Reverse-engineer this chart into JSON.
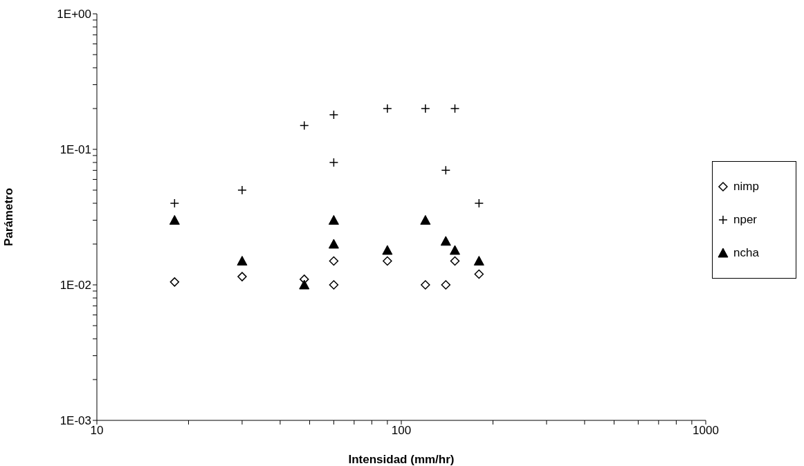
{
  "chart_data": {
    "type": "scatter",
    "xlabel": "Intensidad (mm/hr)",
    "ylabel": "Parámetro",
    "log": "xy",
    "grid": false,
    "legend": "right",
    "xlim": [
      10,
      1000
    ],
    "xticks": [
      10,
      {
        "value": 20,
        "label": null
      },
      {
        "value": 30,
        "label": null
      },
      {
        "value": 40,
        "label": null
      },
      {
        "value": 50,
        "label": null
      },
      {
        "value": 60,
        "label": null
      },
      {
        "value": 70,
        "label": null
      },
      {
        "value": 80,
        "label": null
      },
      {
        "value": 90,
        "label": null
      },
      100,
      {
        "value": 200,
        "label": null
      },
      {
        "value": 300,
        "label": null
      },
      {
        "value": 400,
        "label": null
      },
      {
        "value": 500,
        "label": null
      },
      {
        "value": 600,
        "label": null
      },
      {
        "value": 700,
        "label": null
      },
      {
        "value": 800,
        "label": null
      },
      {
        "value": 900,
        "label": null
      },
      1000
    ],
    "ylim": [
      0.001,
      1
    ],
    "yticks": [
      {
        "value": 0.001,
        "label": "1E-03"
      },
      {
        "value": 0.002,
        "label": null
      },
      {
        "value": 0.003,
        "label": null
      },
      {
        "value": 0.004,
        "label": null
      },
      {
        "value": 0.005,
        "label": null
      },
      {
        "value": 0.006,
        "label": null
      },
      {
        "value": 0.007,
        "label": null
      },
      {
        "value": 0.008,
        "label": null
      },
      {
        "value": 0.009,
        "label": null
      },
      {
        "value": 0.01,
        "label": "1E-02"
      },
      {
        "value": 0.02,
        "label": null
      },
      {
        "value": 0.03,
        "label": null
      },
      {
        "value": 0.04,
        "label": null
      },
      {
        "value": 0.05,
        "label": null
      },
      {
        "value": 0.06,
        "label": null
      },
      {
        "value": 0.07,
        "label": null
      },
      {
        "value": 0.08,
        "label": null
      },
      {
        "value": 0.09,
        "label": null
      },
      {
        "value": 0.1,
        "label": "1E-01"
      },
      {
        "value": 0.2,
        "label": null
      },
      {
        "value": 0.3,
        "label": null
      },
      {
        "value": 0.4,
        "label": null
      },
      {
        "value": 0.5,
        "label": null
      },
      {
        "value": 0.6,
        "label": null
      },
      {
        "value": 0.7,
        "label": null
      },
      {
        "value": 0.8,
        "label": null
      },
      {
        "value": 0.9,
        "label": null
      },
      {
        "value": 1,
        "label": "1E+00"
      }
    ],
    "series": [
      {
        "name": "nimp",
        "color": "#000000",
        "marker": "diamond",
        "x": [
          18,
          30,
          48,
          60,
          60,
          90,
          120,
          140,
          150,
          180
        ],
        "values": [
          0.0105,
          0.0115,
          0.011,
          0.01,
          0.015,
          0.015,
          0.01,
          0.01,
          0.015,
          0.012
        ]
      },
      {
        "name": "nper",
        "color": "#000000",
        "marker": "cross",
        "x": [
          18,
          30,
          48,
          60,
          60,
          90,
          120,
          140,
          150,
          180
        ],
        "values": [
          0.04,
          0.05,
          0.15,
          0.18,
          0.08,
          0.2,
          0.2,
          0.07,
          0.2,
          0.04
        ]
      },
      {
        "name": "ncha",
        "color": "#000000",
        "marker": "triangle",
        "x": [
          18,
          30,
          48,
          60,
          60,
          90,
          120,
          140,
          150,
          180
        ],
        "values": [
          0.03,
          0.015,
          0.01,
          0.03,
          0.02,
          0.018,
          0.03,
          0.021,
          0.018,
          0.015
        ]
      }
    ]
  }
}
